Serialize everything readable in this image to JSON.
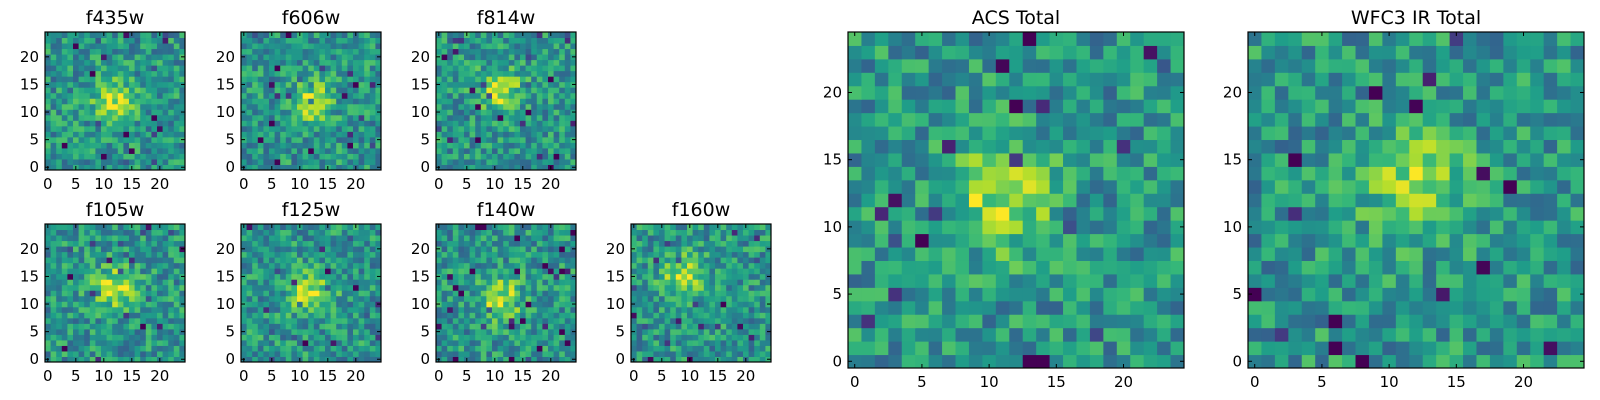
{
  "chart_data": [
    {
      "type": "heatmap",
      "title": "f435w",
      "xlim": [
        -0.5,
        24.5
      ],
      "ylim": [
        -0.5,
        24.5
      ],
      "xticks": [
        "0",
        "5",
        "10",
        "15",
        "20"
      ],
      "yticks": [
        "0",
        "5",
        "10",
        "15",
        "20"
      ],
      "colormap": "viridis",
      "grid_size": [
        25,
        25
      ],
      "seed": 11,
      "peak": [
        12,
        12
      ]
    },
    {
      "type": "heatmap",
      "title": "f606w",
      "xlim": [
        -0.5,
        24.5
      ],
      "ylim": [
        -0.5,
        24.5
      ],
      "xticks": [
        "0",
        "5",
        "10",
        "15",
        "20"
      ],
      "yticks": [
        "0",
        "5",
        "10",
        "15",
        "20"
      ],
      "colormap": "viridis",
      "grid_size": [
        25,
        25
      ],
      "seed": 23,
      "peak": [
        12,
        12
      ]
    },
    {
      "type": "heatmap",
      "title": "f814w",
      "xlim": [
        -0.5,
        24.5
      ],
      "ylim": [
        -0.5,
        24.5
      ],
      "xticks": [
        "0",
        "5",
        "10",
        "15",
        "20"
      ],
      "yticks": [
        "0",
        "5",
        "10",
        "15",
        "20"
      ],
      "colormap": "viridis",
      "grid_size": [
        25,
        25
      ],
      "seed": 37,
      "peak": [
        11,
        14
      ]
    },
    {
      "type": "heatmap",
      "title": "f105w",
      "xlim": [
        -0.5,
        24.5
      ],
      "ylim": [
        -0.5,
        24.5
      ],
      "xticks": [
        "0",
        "5",
        "10",
        "15",
        "20"
      ],
      "yticks": [
        "0",
        "5",
        "10",
        "15",
        "20"
      ],
      "colormap": "viridis",
      "grid_size": [
        25,
        25
      ],
      "seed": 41,
      "peak": [
        12,
        13
      ]
    },
    {
      "type": "heatmap",
      "title": "f125w",
      "xlim": [
        -0.5,
        24.5
      ],
      "ylim": [
        -0.5,
        24.5
      ],
      "xticks": [
        "0",
        "5",
        "10",
        "15",
        "20"
      ],
      "yticks": [
        "0",
        "5",
        "10",
        "15",
        "20"
      ],
      "colormap": "viridis",
      "grid_size": [
        25,
        25
      ],
      "seed": 53,
      "peak": [
        12,
        12
      ]
    },
    {
      "type": "heatmap",
      "title": "f140w",
      "xlim": [
        -0.5,
        24.5
      ],
      "ylim": [
        -0.5,
        24.5
      ],
      "xticks": [
        "0",
        "5",
        "10",
        "15",
        "20"
      ],
      "yticks": [
        "0",
        "5",
        "10",
        "15",
        "20"
      ],
      "colormap": "viridis",
      "grid_size": [
        25,
        25
      ],
      "seed": 67,
      "peak": [
        11,
        11
      ]
    },
    {
      "type": "heatmap",
      "title": "f160w",
      "xlim": [
        -0.5,
        24.5
      ],
      "ylim": [
        -0.5,
        24.5
      ],
      "xticks": [
        "0",
        "5",
        "10",
        "15",
        "20"
      ],
      "yticks": [
        "0",
        "5",
        "10",
        "15",
        "20"
      ],
      "colormap": "viridis",
      "grid_size": [
        25,
        25
      ],
      "seed": 79,
      "peak": [
        9,
        15
      ]
    },
    {
      "type": "heatmap",
      "title": "ACS Total",
      "xlim": [
        -0.5,
        24.5
      ],
      "ylim": [
        -0.5,
        24.5
      ],
      "xticks": [
        "0",
        "5",
        "10",
        "15",
        "20"
      ],
      "yticks": [
        "0",
        "5",
        "10",
        "15",
        "20"
      ],
      "colormap": "viridis",
      "grid_size": [
        25,
        25
      ],
      "seed": 97,
      "peak": [
        11,
        12
      ]
    },
    {
      "type": "heatmap",
      "title": "WFC3 IR Total",
      "xlim": [
        -0.5,
        24.5
      ],
      "ylim": [
        -0.5,
        24.5
      ],
      "xticks": [
        "0",
        "5",
        "10",
        "15",
        "20"
      ],
      "yticks": [
        "0",
        "5",
        "10",
        "15",
        "20"
      ],
      "colormap": "viridis",
      "grid_size": [
        25,
        25
      ],
      "seed": 113,
      "peak": [
        12,
        13
      ]
    }
  ]
}
